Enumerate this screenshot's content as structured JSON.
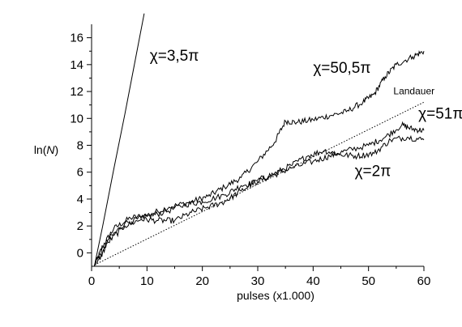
{
  "chart_data": {
    "type": "line",
    "title": "",
    "xlabel": "pulses (x1.000)",
    "ylabel_prefix": "ln(",
    "ylabel_var": "N",
    "ylabel_suffix": ")",
    "xlim": [
      0,
      60
    ],
    "ylim": [
      -1,
      17
    ],
    "xticks": [
      0,
      10,
      20,
      30,
      40,
      50,
      60
    ],
    "yticks": [
      0,
      2,
      4,
      6,
      8,
      10,
      12,
      14,
      16
    ],
    "grid": false,
    "legend": "none",
    "series": [
      {
        "name": "χ=3,5π",
        "style": "solid",
        "x": [
          0.5,
          2,
          4,
          6,
          8,
          9.5
        ],
        "y": [
          -1,
          2,
          6.2,
          10.3,
          14.6,
          17.8
        ]
      },
      {
        "name": "Landauer",
        "style": "dotted",
        "x": [
          1,
          60
        ],
        "y": [
          -0.8,
          11.2
        ]
      },
      {
        "name": "χ=50,5π",
        "style": "solid",
        "x": [
          0.5,
          2,
          4,
          7,
          10,
          14,
          18,
          21,
          24,
          27,
          30,
          33,
          35,
          37,
          40,
          43,
          46,
          49,
          51,
          53,
          55,
          58,
          60
        ],
        "y": [
          -1,
          0.5,
          1.8,
          2.6,
          2.8,
          3.4,
          3.8,
          4.2,
          4.9,
          5.6,
          6.8,
          8.2,
          9.8,
          9.7,
          9.9,
          10.2,
          10.5,
          11.2,
          11.8,
          13.1,
          14.0,
          14.6,
          15.0
        ]
      },
      {
        "name": "χ=51π",
        "style": "solid",
        "x": [
          1,
          3,
          6,
          10,
          13,
          17,
          20,
          24,
          27,
          30,
          33,
          36,
          40,
          43,
          46,
          50,
          53,
          56,
          58,
          60
        ],
        "y": [
          -0.5,
          1.0,
          2.2,
          2.7,
          3.0,
          3.6,
          3.8,
          4.3,
          5.0,
          5.3,
          5.8,
          6.3,
          6.8,
          7.2,
          7.6,
          8.0,
          8.6,
          9.5,
          9.2,
          9.1
        ]
      },
      {
        "name": "χ=2π",
        "style": "solid",
        "x": [
          1,
          3,
          6,
          9,
          12,
          15,
          18,
          21,
          24,
          27,
          30,
          33,
          36,
          39,
          42,
          45,
          48,
          51,
          54,
          57,
          60
        ],
        "y": [
          -0.8,
          0.8,
          2.0,
          2.5,
          2.4,
          2.4,
          3.0,
          3.4,
          3.8,
          4.6,
          5.4,
          5.9,
          6.5,
          7.2,
          7.6,
          7.3,
          7.2,
          7.4,
          8.4,
          8.6,
          8.4
        ]
      }
    ],
    "annotations": [
      {
        "text": "χ=3,5π",
        "x": 10.5,
        "y": 14.3,
        "size": "big"
      },
      {
        "text": "χ=50,5π",
        "x": 40,
        "y": 13.4,
        "size": "big"
      },
      {
        "text": "Landauer",
        "x": 54.5,
        "y": 11.8,
        "size": "small"
      },
      {
        "text": "χ=51π",
        "x": 59,
        "y": 10.0,
        "size": "big"
      },
      {
        "text": "χ=2π",
        "x": 47.5,
        "y": 5.7,
        "size": "big"
      }
    ]
  }
}
